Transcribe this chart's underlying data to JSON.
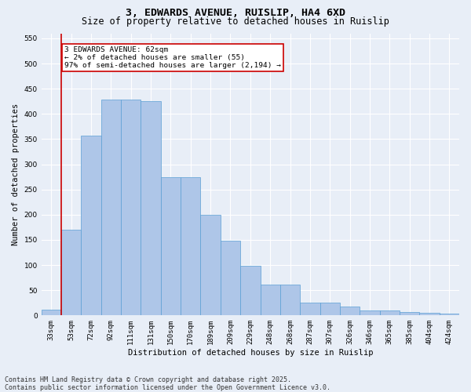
{
  "title_line1": "3, EDWARDS AVENUE, RUISLIP, HA4 6XD",
  "title_line2": "Size of property relative to detached houses in Ruislip",
  "xlabel": "Distribution of detached houses by size in Ruislip",
  "ylabel": "Number of detached properties",
  "categories": [
    "33sqm",
    "53sqm",
    "72sqm",
    "92sqm",
    "111sqm",
    "131sqm",
    "150sqm",
    "170sqm",
    "189sqm",
    "209sqm",
    "229sqm",
    "248sqm",
    "268sqm",
    "287sqm",
    "307sqm",
    "326sqm",
    "346sqm",
    "365sqm",
    "385sqm",
    "404sqm",
    "424sqm"
  ],
  "values": [
    12,
    170,
    357,
    428,
    428,
    425,
    275,
    275,
    200,
    148,
    98,
    61,
    61,
    25,
    25,
    18,
    10,
    10,
    7,
    5,
    3
  ],
  "bar_color": "#aec6e8",
  "bar_edge_color": "#5a9fd4",
  "vline_color": "#cc0000",
  "vline_x": 0.5,
  "annotation_text": "3 EDWARDS AVENUE: 62sqm\n← 2% of detached houses are smaller (55)\n97% of semi-detached houses are larger (2,194) →",
  "annotation_box_color": "#ffffff",
  "annotation_box_edge": "#cc0000",
  "ylim": [
    0,
    560
  ],
  "yticks": [
    0,
    50,
    100,
    150,
    200,
    250,
    300,
    350,
    400,
    450,
    500,
    550
  ],
  "background_color": "#e8eef7",
  "grid_color": "#ffffff",
  "footer_line1": "Contains HM Land Registry data © Crown copyright and database right 2025.",
  "footer_line2": "Contains public sector information licensed under the Open Government Licence v3.0.",
  "title_fontsize": 9.5,
  "subtitle_fontsize": 8.5,
  "axis_label_fontsize": 7.5,
  "tick_fontsize": 6.5,
  "annotation_fontsize": 6.8,
  "footer_fontsize": 6.0
}
